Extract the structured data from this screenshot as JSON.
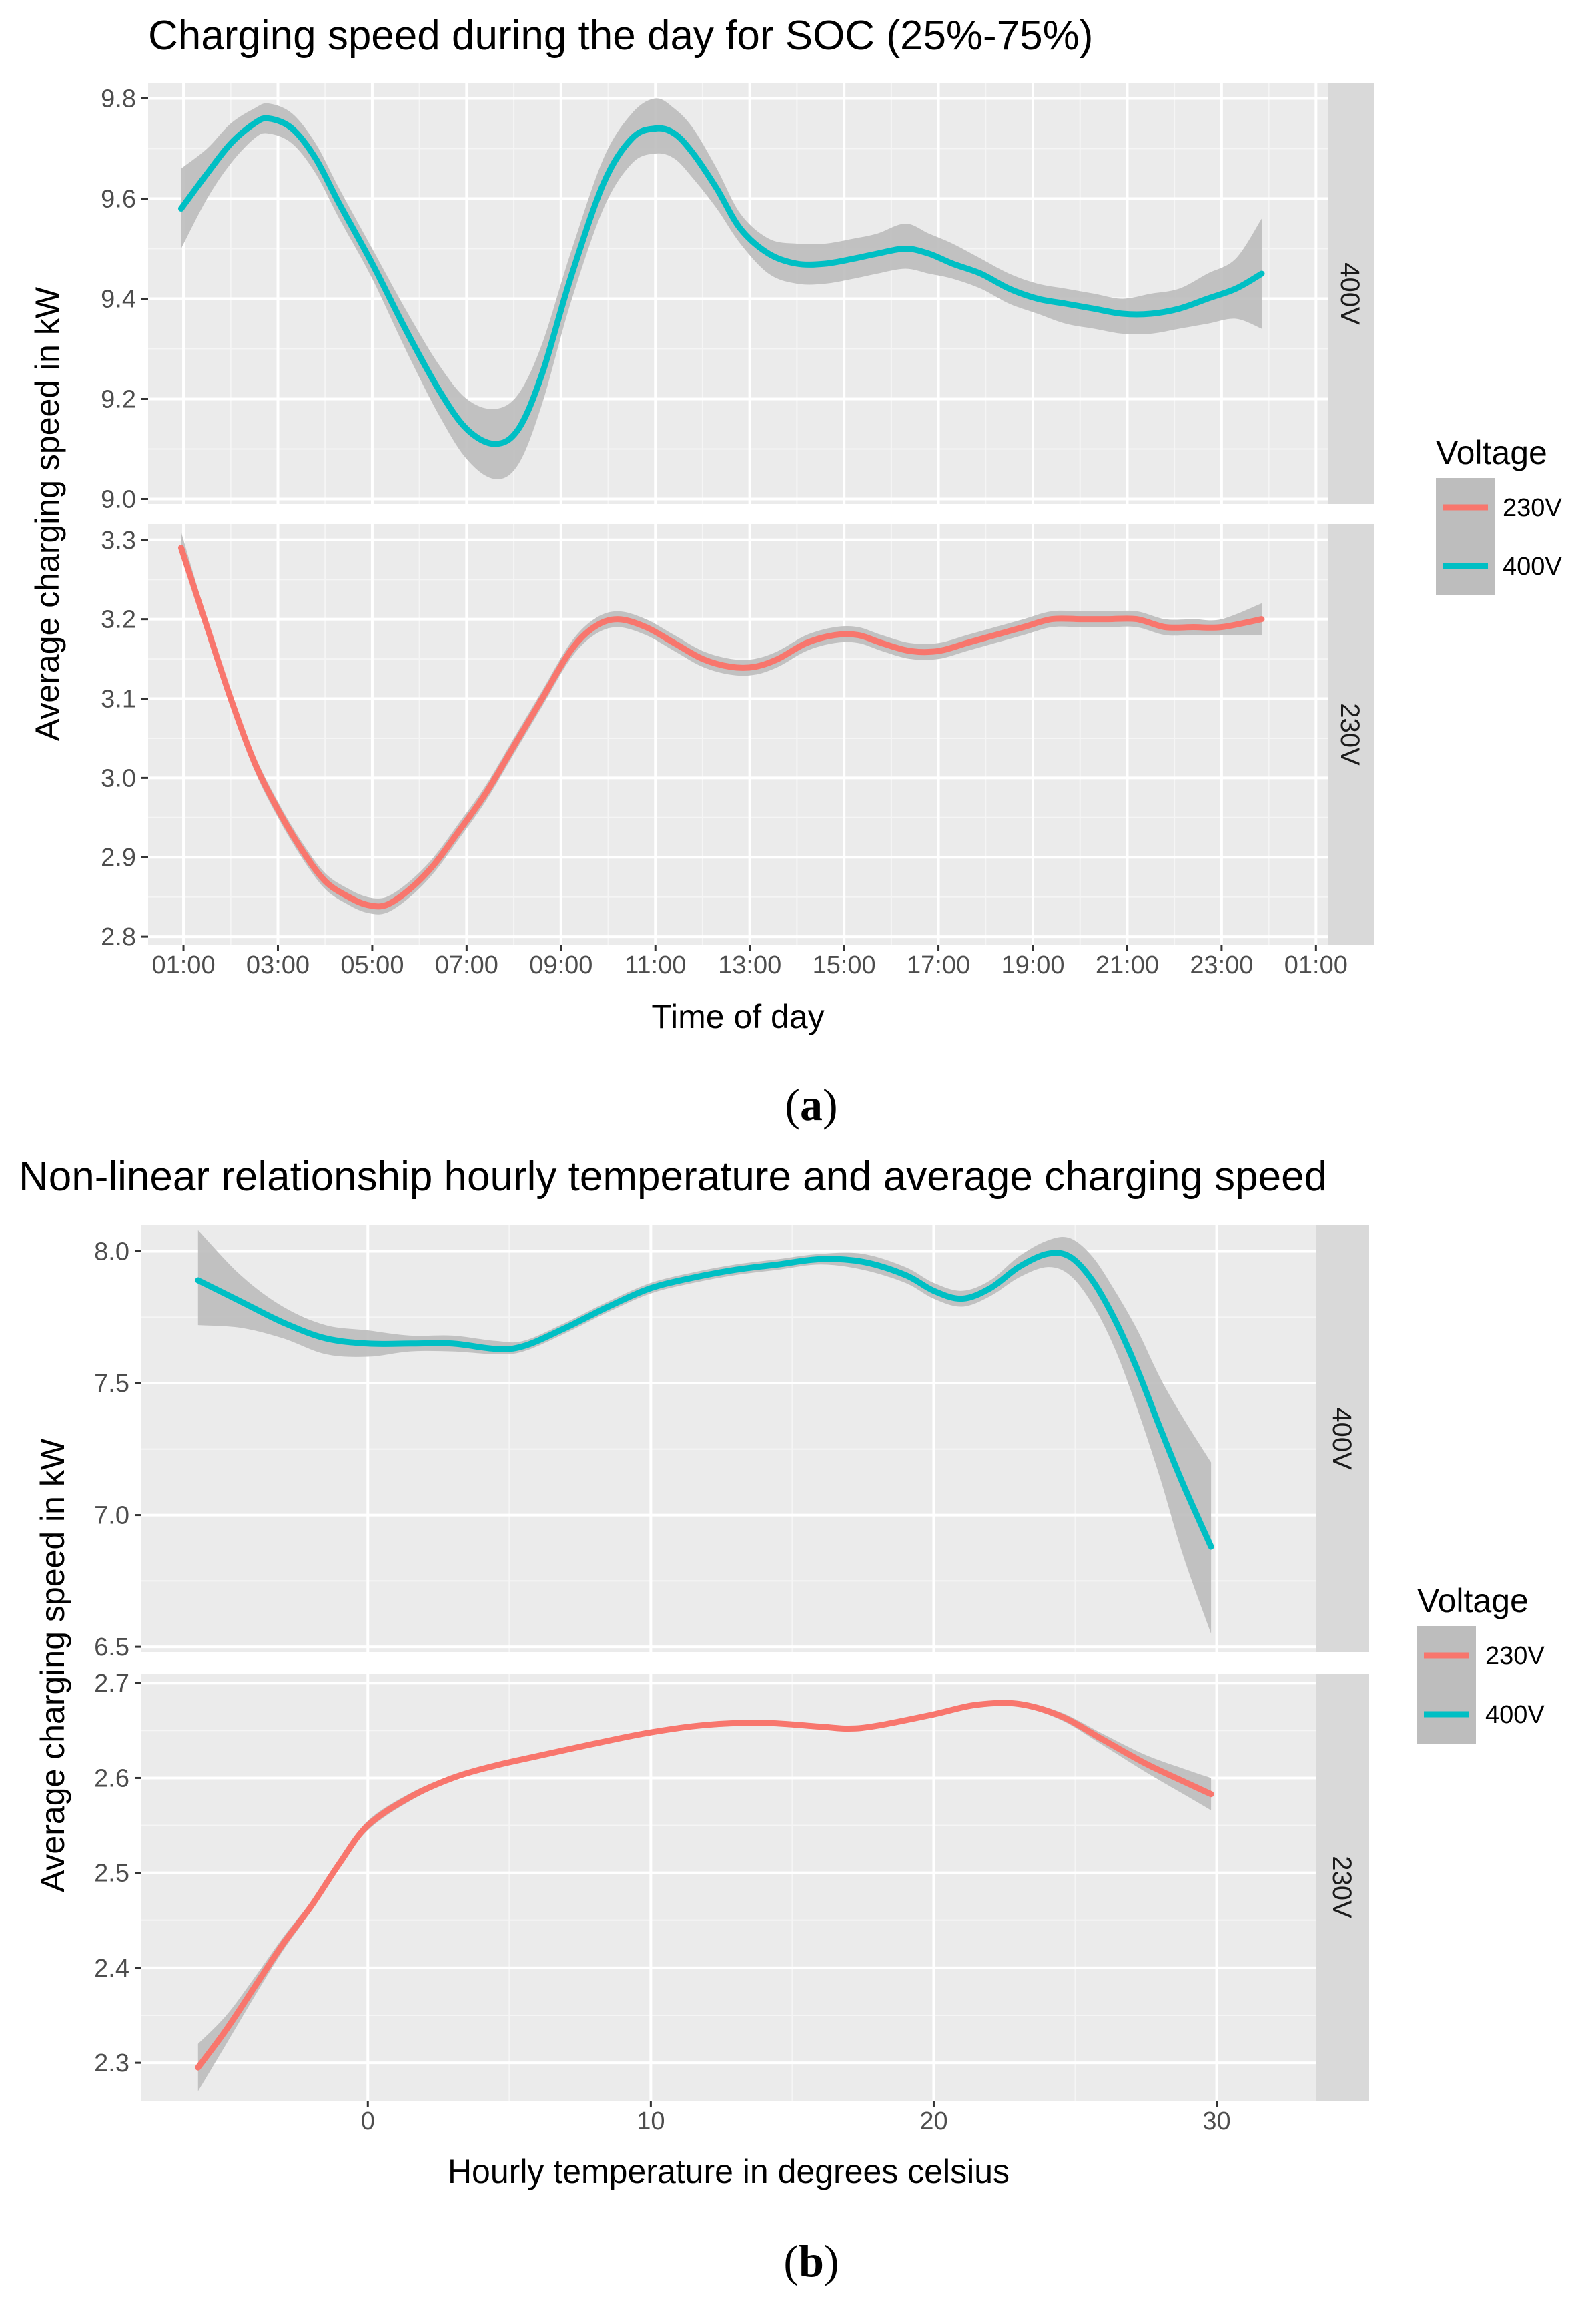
{
  "colors": {
    "v230": "#F8766D",
    "v400": "#00BFC4",
    "panel_bg": "#EBEBEB",
    "grid_major": "#FFFFFF",
    "grid_minor": "#F5F5F5",
    "strip_bg": "#D9D9D9",
    "ribbon": "#BDBDBD",
    "tick_text": "#4D4D4D"
  },
  "chart_data": [
    {
      "id": "a",
      "type": "line",
      "caption": "a",
      "title": "Charging speed during the day for SOC (25%-75%)",
      "xlabel": "Time of day",
      "ylabel": "Average charging speed in kW",
      "xlim": [
        0.25,
        25.25
      ],
      "x_ticks": [
        1,
        3,
        5,
        7,
        9,
        11,
        13,
        15,
        17,
        19,
        21,
        23,
        25
      ],
      "x_tick_labels": [
        "01:00",
        "03:00",
        "05:00",
        "07:00",
        "09:00",
        "11:00",
        "13:00",
        "15:00",
        "17:00",
        "19:00",
        "21:00",
        "23:00",
        "01:00"
      ],
      "legend": {
        "title": "Voltage",
        "entries": [
          "230V",
          "400V"
        ]
      },
      "panels": [
        {
          "strip": "400V",
          "series": "400V",
          "ylim": [
            8.99,
            9.83
          ],
          "y_ticks": [
            9.0,
            9.2,
            9.4,
            9.6,
            9.8
          ],
          "y_tick_labels": [
            "9.0",
            "9.2",
            "9.4",
            "9.6",
            "9.8"
          ],
          "x": [
            0.95,
            1.5,
            2.0,
            2.5,
            2.8,
            3.3,
            3.8,
            4.3,
            5.0,
            5.7,
            6.4,
            7.0,
            7.6,
            8.1,
            8.6,
            9.2,
            9.9,
            10.5,
            11.0,
            11.4,
            11.8,
            12.3,
            12.8,
            13.4,
            14.0,
            14.6,
            15.2,
            15.7,
            16.3,
            16.8,
            17.3,
            17.9,
            18.5,
            19.1,
            19.7,
            20.3,
            20.9,
            21.5,
            22.1,
            22.7,
            23.3,
            23.85
          ],
          "values": [
            9.58,
            9.65,
            9.71,
            9.75,
            9.76,
            9.74,
            9.68,
            9.59,
            9.47,
            9.34,
            9.22,
            9.14,
            9.11,
            9.14,
            9.25,
            9.44,
            9.63,
            9.72,
            9.74,
            9.73,
            9.69,
            9.62,
            9.54,
            9.49,
            9.47,
            9.47,
            9.48,
            9.49,
            9.5,
            9.49,
            9.47,
            9.45,
            9.42,
            9.4,
            9.39,
            9.38,
            9.37,
            9.37,
            9.38,
            9.4,
            9.42,
            9.45
          ],
          "lower": [
            9.5,
            9.6,
            9.67,
            9.72,
            9.73,
            9.71,
            9.65,
            9.56,
            9.44,
            9.3,
            9.17,
            9.08,
            9.04,
            9.07,
            9.19,
            9.39,
            9.58,
            9.67,
            9.69,
            9.68,
            9.64,
            9.58,
            9.51,
            9.45,
            9.43,
            9.43,
            9.44,
            9.45,
            9.46,
            9.45,
            9.44,
            9.42,
            9.39,
            9.37,
            9.35,
            9.34,
            9.33,
            9.33,
            9.34,
            9.35,
            9.36,
            9.34
          ],
          "upper": [
            9.66,
            9.7,
            9.75,
            9.78,
            9.79,
            9.77,
            9.71,
            9.62,
            9.5,
            9.38,
            9.27,
            9.2,
            9.18,
            9.21,
            9.31,
            9.49,
            9.68,
            9.77,
            9.8,
            9.78,
            9.74,
            9.66,
            9.57,
            9.52,
            9.51,
            9.51,
            9.52,
            9.53,
            9.55,
            9.53,
            9.51,
            9.48,
            9.45,
            9.43,
            9.42,
            9.41,
            9.4,
            9.41,
            9.42,
            9.45,
            9.48,
            9.56
          ]
        },
        {
          "strip": "230V",
          "series": "230V",
          "ylim": [
            2.79,
            3.32
          ],
          "y_ticks": [
            2.8,
            2.9,
            3.0,
            3.1,
            3.2,
            3.3
          ],
          "y_tick_labels": [
            "2.8",
            "2.9",
            "3.0",
            "3.1",
            "3.2",
            "3.3"
          ],
          "x": [
            0.95,
            1.5,
            2.0,
            2.5,
            3.0,
            3.5,
            4.0,
            4.5,
            4.9,
            5.3,
            5.8,
            6.3,
            6.8,
            7.4,
            8.0,
            8.6,
            9.2,
            9.7,
            10.2,
            10.8,
            11.4,
            12.0,
            12.6,
            13.1,
            13.6,
            14.2,
            14.8,
            15.3,
            15.8,
            16.4,
            17.0,
            17.6,
            18.2,
            18.8,
            19.4,
            20.0,
            20.6,
            21.2,
            21.8,
            22.4,
            23.0,
            23.85
          ],
          "values": [
            3.29,
            3.19,
            3.1,
            3.02,
            2.96,
            2.91,
            2.87,
            2.85,
            2.84,
            2.84,
            2.86,
            2.89,
            2.93,
            2.98,
            3.04,
            3.1,
            3.16,
            3.19,
            3.2,
            3.19,
            3.17,
            3.15,
            3.14,
            3.14,
            3.15,
            3.17,
            3.18,
            3.18,
            3.17,
            3.16,
            3.16,
            3.17,
            3.18,
            3.19,
            3.2,
            3.2,
            3.2,
            3.2,
            3.19,
            3.19,
            3.19,
            3.2
          ],
          "lower": [
            3.28,
            3.18,
            3.09,
            3.01,
            2.95,
            2.9,
            2.86,
            2.84,
            2.83,
            2.83,
            2.85,
            2.88,
            2.92,
            2.97,
            3.03,
            3.09,
            3.15,
            3.18,
            3.19,
            3.18,
            3.16,
            3.14,
            3.13,
            3.13,
            3.14,
            3.16,
            3.17,
            3.17,
            3.16,
            3.15,
            3.15,
            3.16,
            3.17,
            3.18,
            3.19,
            3.19,
            3.19,
            3.19,
            3.18,
            3.18,
            3.18,
            3.18
          ],
          "upper": [
            3.31,
            3.2,
            3.11,
            3.03,
            2.97,
            2.92,
            2.88,
            2.86,
            2.85,
            2.85,
            2.87,
            2.9,
            2.94,
            2.99,
            3.05,
            3.11,
            3.17,
            3.2,
            3.21,
            3.2,
            3.18,
            3.16,
            3.15,
            3.15,
            3.16,
            3.18,
            3.19,
            3.19,
            3.18,
            3.17,
            3.17,
            3.18,
            3.19,
            3.2,
            3.21,
            3.21,
            3.21,
            3.21,
            3.2,
            3.2,
            3.2,
            3.22
          ]
        }
      ]
    },
    {
      "id": "b",
      "type": "line",
      "caption": "b",
      "title": "Non-linear relationship hourly temperature and average charging speed",
      "xlabel": "Hourly temperature in degrees celsius",
      "ylabel": "Average charging speed in kW",
      "xlim": [
        -8,
        33.5
      ],
      "x_ticks": [
        0,
        10,
        20,
        30
      ],
      "x_tick_labels": [
        "0",
        "10",
        "20",
        "30"
      ],
      "legend": {
        "title": "Voltage",
        "entries": [
          "230V",
          "400V"
        ]
      },
      "panels": [
        {
          "strip": "400V",
          "series": "400V",
          "ylim": [
            6.48,
            8.1
          ],
          "y_ticks": [
            6.5,
            7.0,
            7.5,
            8.0
          ],
          "y_tick_labels": [
            "6.5",
            "7.0",
            "7.5",
            "8.0"
          ],
          "x": [
            -6.0,
            -4.5,
            -3.0,
            -1.5,
            0.0,
            1.5,
            3.0,
            4.5,
            5.5,
            7.0,
            8.5,
            10.0,
            11.5,
            13.0,
            14.5,
            16.0,
            17.5,
            19.0,
            20.0,
            21.0,
            22.0,
            23.0,
            24.0,
            24.8,
            25.6,
            26.4,
            27.2,
            28.0,
            28.8,
            29.8
          ],
          "values": [
            7.89,
            7.81,
            7.73,
            7.67,
            7.65,
            7.65,
            7.65,
            7.63,
            7.64,
            7.71,
            7.79,
            7.86,
            7.9,
            7.93,
            7.95,
            7.97,
            7.96,
            7.91,
            7.85,
            7.82,
            7.86,
            7.94,
            7.99,
            7.98,
            7.89,
            7.74,
            7.55,
            7.33,
            7.12,
            6.88
          ],
          "lower": [
            7.72,
            7.71,
            7.67,
            7.61,
            7.6,
            7.62,
            7.62,
            7.61,
            7.62,
            7.69,
            7.77,
            7.84,
            7.88,
            7.91,
            7.93,
            7.95,
            7.93,
            7.88,
            7.82,
            7.79,
            7.83,
            7.9,
            7.94,
            7.91,
            7.8,
            7.63,
            7.4,
            7.14,
            6.85,
            6.55
          ],
          "upper": [
            8.08,
            7.91,
            7.79,
            7.72,
            7.7,
            7.68,
            7.68,
            7.66,
            7.66,
            7.73,
            7.81,
            7.88,
            7.92,
            7.95,
            7.97,
            7.99,
            7.99,
            7.94,
            7.88,
            7.85,
            7.89,
            7.98,
            8.04,
            8.05,
            7.98,
            7.85,
            7.7,
            7.52,
            7.37,
            7.2
          ]
        },
        {
          "strip": "230V",
          "series": "230V",
          "ylim": [
            2.26,
            2.71
          ],
          "y_ticks": [
            2.3,
            2.4,
            2.5,
            2.6,
            2.7
          ],
          "y_tick_labels": [
            "2.3",
            "2.4",
            "2.5",
            "2.6",
            "2.7"
          ],
          "x": [
            -6.0,
            -5.0,
            -4.0,
            -3.0,
            -2.0,
            -1.0,
            0.0,
            1.5,
            3.0,
            4.5,
            6.0,
            8.0,
            10.0,
            12.0,
            14.0,
            16.0,
            17.0,
            18.0,
            20.0,
            21.5,
            23.0,
            24.5,
            26.0,
            27.5,
            29.0,
            29.8
          ],
          "values": [
            2.295,
            2.335,
            2.38,
            2.425,
            2.465,
            2.51,
            2.55,
            2.58,
            2.6,
            2.613,
            2.623,
            2.636,
            2.648,
            2.656,
            2.658,
            2.654,
            2.652,
            2.655,
            2.667,
            2.677,
            2.678,
            2.665,
            2.64,
            2.615,
            2.594,
            2.583
          ],
          "lower": [
            2.27,
            2.32,
            2.37,
            2.418,
            2.46,
            2.506,
            2.545,
            2.576,
            2.597,
            2.61,
            2.62,
            2.633,
            2.645,
            2.653,
            2.655,
            2.651,
            2.649,
            2.652,
            2.664,
            2.674,
            2.675,
            2.661,
            2.634,
            2.606,
            2.58,
            2.566
          ],
          "upper": [
            2.32,
            2.35,
            2.39,
            2.432,
            2.47,
            2.514,
            2.555,
            2.584,
            2.603,
            2.616,
            2.626,
            2.639,
            2.651,
            2.659,
            2.661,
            2.657,
            2.655,
            2.658,
            2.67,
            2.68,
            2.681,
            2.669,
            2.646,
            2.624,
            2.608,
            2.6
          ]
        }
      ]
    }
  ]
}
